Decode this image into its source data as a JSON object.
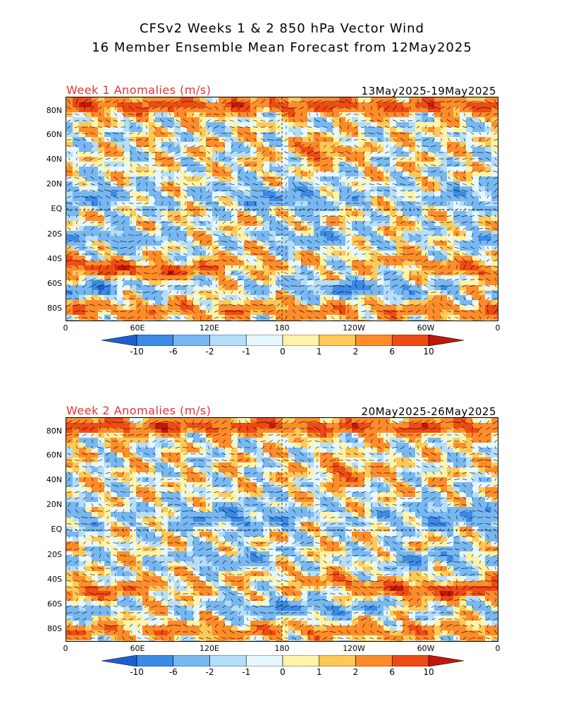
{
  "header": {
    "line1": "CFSv2 Weeks 1 & 2 850 hPa Vector Wind",
    "line2": "16 Member Ensemble Mean Forecast from 12May2025"
  },
  "panels": [
    {
      "label": "Week 1 Anomalies (m/s)",
      "dates": "13May2025-19May2025"
    },
    {
      "label": "Week 2 Anomalies (m/s)",
      "dates": "20May2025-26May2025"
    }
  ],
  "axes": {
    "lat_ticks": [
      "80N",
      "60N",
      "40N",
      "20N",
      "EQ",
      "20S",
      "40S",
      "60S",
      "80S"
    ],
    "lon_ticks": [
      "0",
      "60E",
      "120E",
      "180",
      "120W",
      "60W",
      "0"
    ]
  },
  "colorbar": {
    "labels": [
      "-10",
      "-6",
      "-2",
      "-1",
      "0",
      "1",
      "2",
      "6",
      "10"
    ],
    "colors": [
      "#1e5fd0",
      "#3a8ae6",
      "#78b8f2",
      "#b5defa",
      "#e6f8ff",
      "#fff3a8",
      "#ffc857",
      "#ff8c2a",
      "#f04a14",
      "#c01808"
    ]
  }
}
